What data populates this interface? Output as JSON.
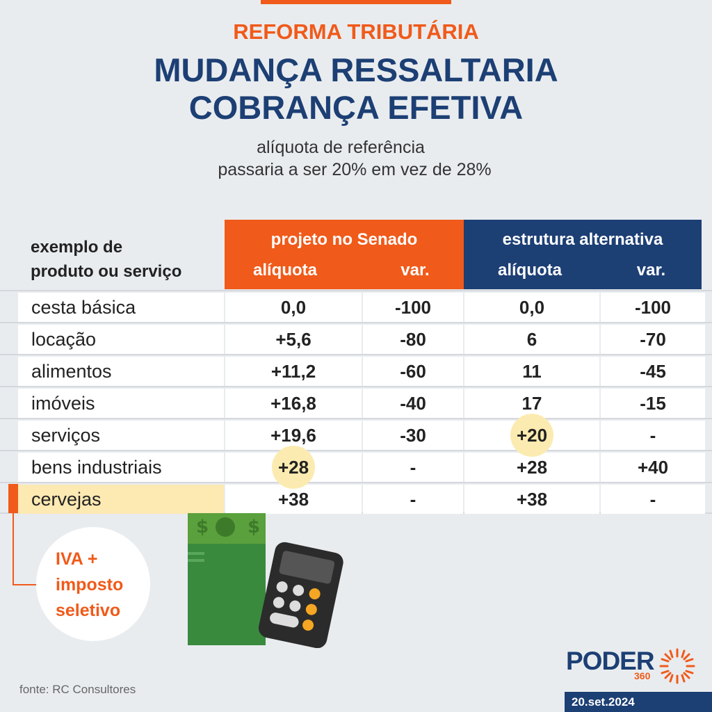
{
  "header": {
    "kicker": "REFORMA TRIBUTÁRIA",
    "title_line1": "MUDANÇA RESSALTARIA",
    "title_line2": "COBRANÇA EFETIVA",
    "subtitle_line1": "alíquota de referência",
    "subtitle_line2": "passaria a ser 20% em vez de 28%"
  },
  "table": {
    "row_header_line1": "exemplo de",
    "row_header_line2": "produto ou serviço",
    "group_senado": "projeto no Senado",
    "group_alternativa": "estrutura alternativa",
    "col_aliquota": "alíquota",
    "col_var": "var."
  },
  "chart_data": {
    "type": "table",
    "title": "MUDANÇA RESSALTARIA COBRANÇA EFETIVA",
    "columns": [
      "exemplo de produto ou serviço",
      "projeto no Senado — alíquota",
      "projeto no Senado — var.",
      "estrutura alternativa — alíquota",
      "estrutura alternativa — var."
    ],
    "rows": [
      {
        "produto": "cesta básica",
        "senado_aliquota": "0,0",
        "senado_var": "-100",
        "alt_aliquota": "0,0",
        "alt_var": "-100",
        "highlight": false
      },
      {
        "produto": "locação",
        "senado_aliquota": "+5,6",
        "senado_var": "-80",
        "alt_aliquota": "6",
        "alt_var": "-70",
        "highlight": false
      },
      {
        "produto": "alimentos",
        "senado_aliquota": "+11,2",
        "senado_var": "-60",
        "alt_aliquota": "11",
        "alt_var": "-45",
        "highlight": false
      },
      {
        "produto": "imóveis",
        "senado_aliquota": "+16,8",
        "senado_var": "-40",
        "alt_aliquota": "17",
        "alt_var": "-15",
        "highlight": false
      },
      {
        "produto": "serviços",
        "senado_aliquota": "+19,6",
        "senado_var": "-30",
        "alt_aliquota": "+20",
        "alt_var": "-",
        "highlight": false
      },
      {
        "produto": "bens industriais",
        "senado_aliquota": "+28",
        "senado_var": "-",
        "alt_aliquota": "+28",
        "alt_var": "+40",
        "highlight": false
      },
      {
        "produto": "cervejas",
        "senado_aliquota": "+38",
        "senado_var": "-",
        "alt_aliquota": "+38",
        "alt_var": "-",
        "highlight": true
      }
    ],
    "circled_values": [
      {
        "row": "bens industriais",
        "column": "senado_aliquota",
        "value": "+28"
      },
      {
        "row": "serviços",
        "column": "alt_aliquota",
        "value": "+20"
      }
    ]
  },
  "annotation": {
    "line1": "IVA +",
    "line2": "imposto",
    "line3": "seletivo"
  },
  "footer": {
    "source": "fonte: RC Consultores",
    "logo_text": "PODER",
    "logo_number": "360",
    "date": "20.set.2024"
  },
  "colors": {
    "accent_orange": "#f05a1a",
    "brand_navy": "#1c3f74",
    "highlight_yellow": "#fcebb0",
    "background": "#e9ecef"
  }
}
